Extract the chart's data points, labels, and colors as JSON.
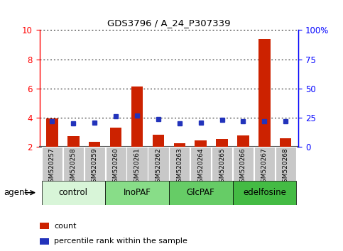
{
  "title": "GDS3796 / A_24_P307339",
  "samples": [
    "GSM520257",
    "GSM520258",
    "GSM520259",
    "GSM520260",
    "GSM520261",
    "GSM520262",
    "GSM520263",
    "GSM520264",
    "GSM520265",
    "GSM520266",
    "GSM520267",
    "GSM520268"
  ],
  "count_values": [
    3.95,
    2.75,
    2.35,
    3.3,
    6.15,
    2.85,
    2.25,
    2.45,
    2.55,
    2.8,
    9.4,
    2.6
  ],
  "percentile_values": [
    22,
    20,
    21,
    26,
    27,
    24,
    20,
    21,
    23,
    22,
    22,
    22
  ],
  "bar_bottom": 2.0,
  "ylim_left": [
    2,
    10
  ],
  "ylim_right": [
    0,
    100
  ],
  "yticks_left": [
    2,
    4,
    6,
    8,
    10
  ],
  "yticks_right": [
    0,
    25,
    50,
    75,
    100
  ],
  "yticklabels_right": [
    "0",
    "25",
    "50",
    "75",
    "100%"
  ],
  "bar_color": "#cc2200",
  "percentile_color": "#2233bb",
  "grid_color": "#000000",
  "bar_width": 0.55,
  "groups": [
    {
      "label": "control",
      "start": 0,
      "end": 3,
      "color": "#d8f5d8"
    },
    {
      "label": "InoPAF",
      "start": 3,
      "end": 6,
      "color": "#88dd88"
    },
    {
      "label": "GlcPAF",
      "start": 6,
      "end": 9,
      "color": "#66cc66"
    },
    {
      "label": "edelfosine",
      "start": 9,
      "end": 12,
      "color": "#44bb44"
    }
  ],
  "agent_label": "agent",
  "legend_count_label": "count",
  "legend_percentile_label": "percentile rank within the sample",
  "background_color": "#ffffff",
  "plot_bg_color": "#ffffff",
  "tick_label_bg": "#c8c8c8"
}
